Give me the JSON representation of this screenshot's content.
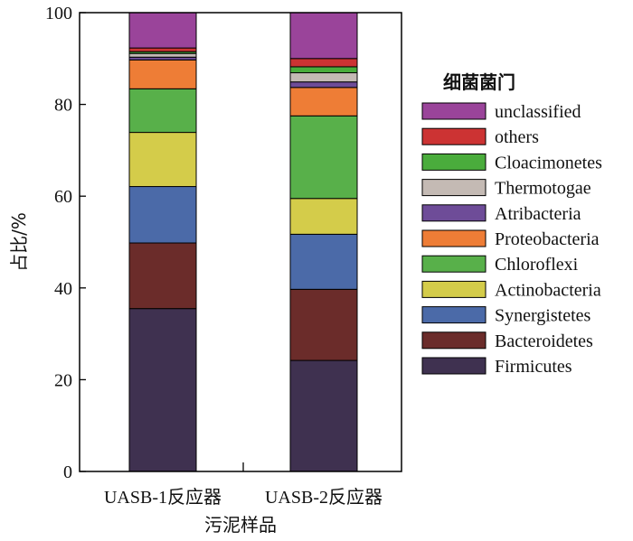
{
  "chart_data": {
    "type": "bar",
    "stacked": true,
    "xlabel": "污泥样品",
    "ylabel": "占比/%",
    "ylim": [
      0,
      100
    ],
    "yticks": [
      0,
      20,
      40,
      60,
      80,
      100
    ],
    "categories": [
      "UASB-1反应器",
      "UASB-2反应器"
    ],
    "legend_title": "细菌菌门",
    "legend_position": "right",
    "series": [
      {
        "name": "Firmicutes",
        "color": "#3f3150",
        "values": [
          35.5,
          24.2
        ]
      },
      {
        "name": "Bacteroidetes",
        "color": "#6b2c2a",
        "values": [
          14.3,
          15.5
        ]
      },
      {
        "name": "Synergistetes",
        "color": "#4b6aa8",
        "values": [
          12.3,
          12.0
        ]
      },
      {
        "name": "Actinobacteria",
        "color": "#d4cc4a",
        "values": [
          11.8,
          7.8
        ]
      },
      {
        "name": "Chloroflexi",
        "color": "#58b04a",
        "values": [
          9.5,
          18.0
        ]
      },
      {
        "name": "Proteobacteria",
        "color": "#ee7d36",
        "values": [
          6.3,
          6.2
        ]
      },
      {
        "name": "Atribacteria",
        "color": "#6e4c98",
        "values": [
          0.6,
          1.2
        ]
      },
      {
        "name": "Thermotogae",
        "color": "#c4bab4",
        "values": [
          0.8,
          2.0
        ]
      },
      {
        "name": "Cloacimonetes",
        "color": "#4aac3c",
        "values": [
          0.4,
          1.3
        ]
      },
      {
        "name": "others",
        "color": "#cc3333",
        "values": [
          0.8,
          1.8
        ]
      },
      {
        "name": "unclassified",
        "color": "#9a449a",
        "values": [
          7.7,
          10.0
        ]
      }
    ]
  }
}
